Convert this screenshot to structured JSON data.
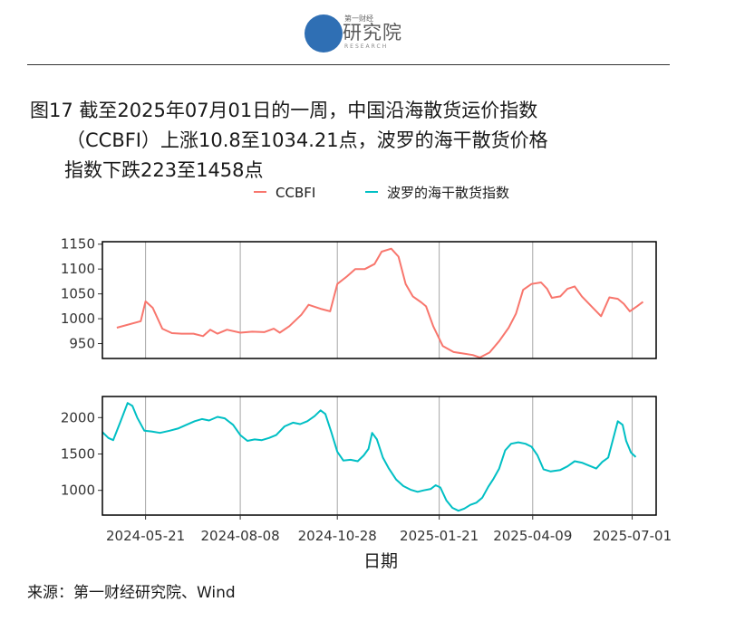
{
  "header": {
    "logo_small": "第一财经",
    "logo_name": "研究院",
    "logo_sub": "RESEARCH"
  },
  "title": {
    "line1": "图17  截至2025年07月01日的一周，中国沿海散货运价指数",
    "line2": "（CCBFI）上涨10.8至1034.21点，波罗的海干散货价格",
    "line3": "指数下跌223至1458点"
  },
  "source": "来源：第一财经研究院、Wind",
  "colors": {
    "ccbfi": "#F8766D",
    "bdi": "#00BFC4"
  },
  "chart_data": {
    "type": "line",
    "xlabel": "日期",
    "legend": {
      "placement": "top"
    },
    "x_ticks": [
      "2024-05-21",
      "2024-08-08",
      "2024-10-28",
      "2025-01-21",
      "2025-04-09",
      "2025-07-01"
    ],
    "x_range": [
      "2024-04-15",
      "2025-07-21"
    ],
    "panels": [
      {
        "name": "CCBFI",
        "ylim": [
          920,
          1155
        ],
        "y_ticks": [
          950,
          1000,
          1050,
          1100,
          1150
        ],
        "points": [
          [
            "2024-04-27",
            982
          ],
          [
            "2024-05-17",
            995
          ],
          [
            "2024-05-21",
            1035
          ],
          [
            "2024-05-27",
            1022
          ],
          [
            "2024-06-04",
            980
          ],
          [
            "2024-06-12",
            971
          ],
          [
            "2024-06-20",
            970
          ],
          [
            "2024-06-30",
            970
          ],
          [
            "2024-07-08",
            965
          ],
          [
            "2024-07-14",
            978
          ],
          [
            "2024-07-20",
            970
          ],
          [
            "2024-07-28",
            978
          ],
          [
            "2024-08-08",
            972
          ],
          [
            "2024-08-18",
            974
          ],
          [
            "2024-08-28",
            973
          ],
          [
            "2024-09-05",
            980
          ],
          [
            "2024-09-10",
            972
          ],
          [
            "2024-09-18",
            985
          ],
          [
            "2024-09-28",
            1008
          ],
          [
            "2024-10-04",
            1028
          ],
          [
            "2024-10-14",
            1020
          ],
          [
            "2024-10-22",
            1015
          ],
          [
            "2024-10-28",
            1070
          ],
          [
            "2024-11-05",
            1085
          ],
          [
            "2024-11-12",
            1100
          ],
          [
            "2024-11-20",
            1100
          ],
          [
            "2024-11-28",
            1110
          ],
          [
            "2024-12-04",
            1135
          ],
          [
            "2024-12-12",
            1141
          ],
          [
            "2024-12-18",
            1125
          ],
          [
            "2024-12-24",
            1070
          ],
          [
            "2024-12-30",
            1045
          ],
          [
            "2025-01-06",
            1033
          ],
          [
            "2025-01-10",
            1025
          ],
          [
            "2025-01-16",
            985
          ],
          [
            "2025-01-24",
            945
          ],
          [
            "2025-02-02",
            933
          ],
          [
            "2025-02-10",
            930
          ],
          [
            "2025-02-18",
            927
          ],
          [
            "2025-02-24",
            922
          ],
          [
            "2025-03-04",
            932
          ],
          [
            "2025-03-12",
            955
          ],
          [
            "2025-03-20",
            982
          ],
          [
            "2025-03-26",
            1010
          ],
          [
            "2025-04-01",
            1058
          ],
          [
            "2025-04-08",
            1070
          ],
          [
            "2025-04-16",
            1073
          ],
          [
            "2025-04-21",
            1060
          ],
          [
            "2025-04-25",
            1042
          ],
          [
            "2025-05-02",
            1045
          ],
          [
            "2025-05-08",
            1060
          ],
          [
            "2025-05-14",
            1065
          ],
          [
            "2025-05-20",
            1045
          ],
          [
            "2025-05-30",
            1020
          ],
          [
            "2025-06-05",
            1005
          ],
          [
            "2025-06-12",
            1043
          ],
          [
            "2025-06-19",
            1040
          ],
          [
            "2025-06-24",
            1030
          ],
          [
            "2025-06-29",
            1015
          ],
          [
            "2025-07-05",
            1025
          ],
          [
            "2025-07-10",
            1034
          ]
        ]
      },
      {
        "name": "波罗的海干散货指数",
        "ylim": [
          660,
          2290
        ],
        "y_ticks": [
          1000,
          1500,
          2000
        ],
        "points": [
          [
            "2024-04-15",
            1800
          ],
          [
            "2024-04-20",
            1720
          ],
          [
            "2024-04-24",
            1690
          ],
          [
            "2024-04-30",
            1940
          ],
          [
            "2024-05-06",
            2200
          ],
          [
            "2024-05-10",
            2160
          ],
          [
            "2024-05-14",
            2000
          ],
          [
            "2024-05-20",
            1820
          ],
          [
            "2024-05-26",
            1810
          ],
          [
            "2024-06-02",
            1790
          ],
          [
            "2024-06-10",
            1820
          ],
          [
            "2024-06-17",
            1850
          ],
          [
            "2024-06-24",
            1900
          ],
          [
            "2024-07-01",
            1950
          ],
          [
            "2024-07-07",
            1980
          ],
          [
            "2024-07-13",
            1960
          ],
          [
            "2024-07-20",
            2010
          ],
          [
            "2024-07-26",
            1990
          ],
          [
            "2024-08-02",
            1900
          ],
          [
            "2024-08-08",
            1760
          ],
          [
            "2024-08-14",
            1680
          ],
          [
            "2024-08-20",
            1700
          ],
          [
            "2024-08-26",
            1690
          ],
          [
            "2024-09-01",
            1720
          ],
          [
            "2024-09-07",
            1760
          ],
          [
            "2024-09-14",
            1880
          ],
          [
            "2024-09-21",
            1930
          ],
          [
            "2024-09-27",
            1910
          ],
          [
            "2024-10-03",
            1950
          ],
          [
            "2024-10-09",
            2020
          ],
          [
            "2024-10-14",
            2100
          ],
          [
            "2024-10-18",
            2050
          ],
          [
            "2024-10-23",
            1800
          ],
          [
            "2024-10-28",
            1530
          ],
          [
            "2024-11-02",
            1410
          ],
          [
            "2024-11-08",
            1420
          ],
          [
            "2024-11-14",
            1400
          ],
          [
            "2024-11-19",
            1480
          ],
          [
            "2024-11-23",
            1570
          ],
          [
            "2024-11-26",
            1790
          ],
          [
            "2024-11-30",
            1700
          ],
          [
            "2024-12-05",
            1450
          ],
          [
            "2024-12-10",
            1300
          ],
          [
            "2024-12-16",
            1150
          ],
          [
            "2024-12-22",
            1060
          ],
          [
            "2024-12-28",
            1010
          ],
          [
            "2025-01-03",
            980
          ],
          [
            "2025-01-08",
            1000
          ],
          [
            "2025-01-14",
            1020
          ],
          [
            "2025-01-18",
            1070
          ],
          [
            "2025-01-22",
            1040
          ],
          [
            "2025-01-27",
            860
          ],
          [
            "2025-02-01",
            760
          ],
          [
            "2025-02-06",
            720
          ],
          [
            "2025-02-11",
            750
          ],
          [
            "2025-02-16",
            800
          ],
          [
            "2025-02-21",
            830
          ],
          [
            "2025-02-26",
            900
          ],
          [
            "2025-03-03",
            1050
          ],
          [
            "2025-03-07",
            1150
          ],
          [
            "2025-03-12",
            1300
          ],
          [
            "2025-03-17",
            1550
          ],
          [
            "2025-03-22",
            1640
          ],
          [
            "2025-03-28",
            1660
          ],
          [
            "2025-04-03",
            1640
          ],
          [
            "2025-04-08",
            1600
          ],
          [
            "2025-04-13",
            1480
          ],
          [
            "2025-04-18",
            1290
          ],
          [
            "2025-04-24",
            1260
          ],
          [
            "2025-05-02",
            1280
          ],
          [
            "2025-05-08",
            1330
          ],
          [
            "2025-05-14",
            1400
          ],
          [
            "2025-05-20",
            1380
          ],
          [
            "2025-05-26",
            1340
          ],
          [
            "2025-06-01",
            1300
          ],
          [
            "2025-06-06",
            1390
          ],
          [
            "2025-06-11",
            1450
          ],
          [
            "2025-06-15",
            1700
          ],
          [
            "2025-06-19",
            1950
          ],
          [
            "2025-06-23",
            1900
          ],
          [
            "2025-06-26",
            1680
          ],
          [
            "2025-06-30",
            1520
          ],
          [
            "2025-07-04",
            1458
          ]
        ]
      }
    ],
    "series": [
      {
        "name": "CCBFI",
        "panel": 0
      },
      {
        "name": "波罗的海干散货指数",
        "panel": 1
      }
    ]
  }
}
